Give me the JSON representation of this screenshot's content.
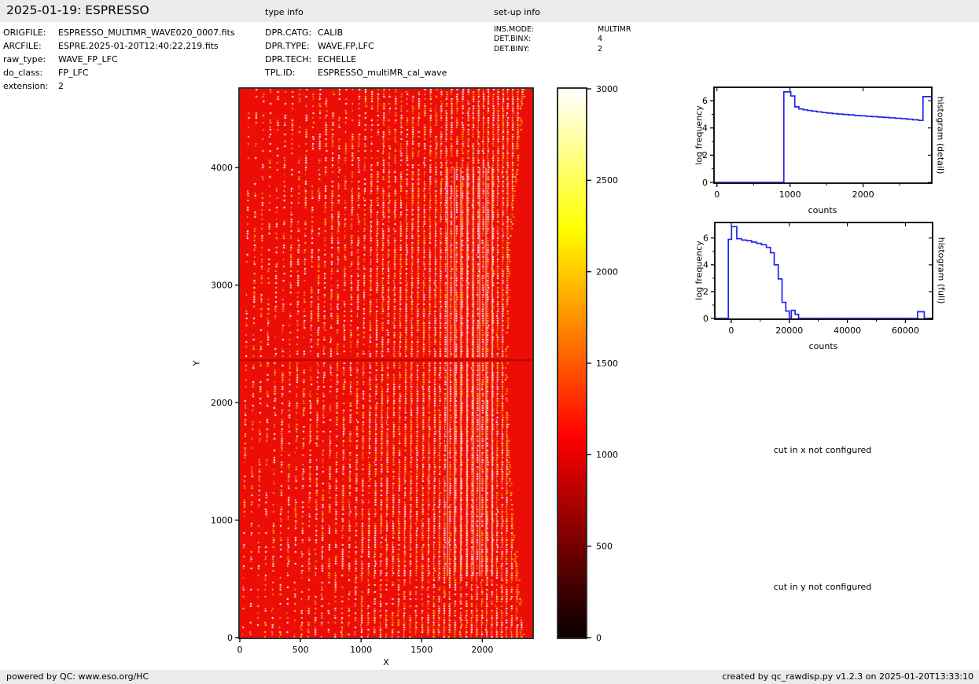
{
  "header": {
    "title": "2025-01-19: ESPRESSO",
    "type_info_label": "type info",
    "setup_info_label": "set-up info"
  },
  "metadata": {
    "file_info": [
      {
        "label": "ORIGFILE:",
        "value": "ESPRESSO_MULTIMR_WAVE020_0007.fits"
      },
      {
        "label": "ARCFILE:",
        "value": "ESPRE.2025-01-20T12:40:22.219.fits"
      },
      {
        "label": "raw_type:",
        "value": "WAVE_FP_LFC"
      },
      {
        "label": "do_class:",
        "value": "FP_LFC"
      },
      {
        "label": "extension:",
        "value": "2"
      }
    ],
    "type_info": [
      {
        "label": "DPR.CATG:",
        "value": "CALIB"
      },
      {
        "label": "DPR.TYPE:",
        "value": "WAVE,FP,LFC"
      },
      {
        "label": "DPR.TECH:",
        "value": "ECHELLE"
      },
      {
        "label": "TPL.ID:",
        "value": "ESPRESSO_multiMR_cal_wave"
      }
    ],
    "setup_info": [
      {
        "label": "INS.MODE:",
        "value": "MULTIMR"
      },
      {
        "label": "DET.BINX:",
        "value": "4"
      },
      {
        "label": "DET.BINY:",
        "value": "2"
      }
    ]
  },
  "messages": {
    "cut_x": "cut in x not configured",
    "cut_y": "cut in y not configured"
  },
  "footer": {
    "left": "powered by QC: www.eso.org/HC",
    "right": "created by qc_rawdisp.py v1.2.3 on 2025-01-20T13:33:10"
  },
  "chart_data": [
    {
      "type": "heatmap",
      "name": "raw-frame-image",
      "description": "ESPRESSO raw WAVE,FP,LFC echelle frame: red background with slanted dotted bright emission-line order stripes, denser and nearly solid white toward the centre-right, plain red band at the right edge, dark horizontal defect line near y=2370",
      "xlabel": "X",
      "ylabel": "Y",
      "xlim": [
        0,
        2413
      ],
      "ylim": [
        0,
        4670
      ],
      "x_ticks": [
        0,
        500,
        1000,
        1500,
        2000
      ],
      "y_ticks": [
        0,
        1000,
        2000,
        3000,
        4000
      ],
      "colormap": "hot",
      "vmin": 0,
      "vmax": 3000,
      "background_color": "#ed0d07",
      "dot_colors": [
        "#ffffff",
        "#ffe100",
        "#ff9000"
      ],
      "bright_columns": [
        263,
        272,
        280,
        288,
        296,
        304,
        312,
        320
      ],
      "defect_line_y": 2370,
      "defect_line_color": "#b50600"
    },
    {
      "type": "colorbar",
      "name": "colorbar",
      "vmin": 0,
      "vmax": 3000,
      "ticks": [
        0,
        500,
        1000,
        1500,
        2000,
        2500,
        3000
      ],
      "gradient_stops": [
        [
          0.0,
          "#0b0000"
        ],
        [
          0.1,
          "#460000"
        ],
        [
          0.2,
          "#8c0000"
        ],
        [
          0.3,
          "#d10000"
        ],
        [
          0.365,
          "#ff0000"
        ],
        [
          0.45,
          "#ff3900"
        ],
        [
          0.55,
          "#ff7c00"
        ],
        [
          0.65,
          "#ffbf00"
        ],
        [
          0.746,
          "#ffff00"
        ],
        [
          0.85,
          "#ffff68"
        ],
        [
          0.95,
          "#ffffcd"
        ],
        [
          1.0,
          "#ffffff"
        ]
      ]
    },
    {
      "type": "line",
      "name": "histogram-detail",
      "side_label": "histogram (detail)",
      "xlabel": "counts",
      "ylabel": "log frequency",
      "xlim": [
        -30,
        2930
      ],
      "ylim": [
        0,
        6.93
      ],
      "x_ticks": [
        0,
        1000,
        2000
      ],
      "x_minor_ticks": [
        500,
        1500,
        2500
      ],
      "y_ticks": [
        0,
        2,
        4,
        6
      ],
      "y_minor_ticks": [
        1,
        3,
        5
      ],
      "line_color": "#2222ee",
      "steps": [
        [
          -30,
          0
        ],
        [
          915,
          6.65
        ],
        [
          1010,
          6.35
        ],
        [
          1065,
          5.55
        ],
        [
          1120,
          5.4
        ],
        [
          1180,
          5.33
        ],
        [
          1240,
          5.28
        ],
        [
          1300,
          5.23
        ],
        [
          1370,
          5.18
        ],
        [
          1440,
          5.13
        ],
        [
          1510,
          5.09
        ],
        [
          1580,
          5.05
        ],
        [
          1650,
          5.02
        ],
        [
          1720,
          4.99
        ],
        [
          1800,
          4.96
        ],
        [
          1880,
          4.92
        ],
        [
          1960,
          4.89
        ],
        [
          2040,
          4.86
        ],
        [
          2120,
          4.83
        ],
        [
          2200,
          4.8
        ],
        [
          2280,
          4.77
        ],
        [
          2360,
          4.74
        ],
        [
          2440,
          4.71
        ],
        [
          2520,
          4.68
        ],
        [
          2600,
          4.64
        ],
        [
          2680,
          4.6
        ],
        [
          2760,
          4.55
        ],
        [
          2820,
          6.3
        ],
        [
          2930,
          6.3
        ]
      ]
    },
    {
      "type": "line",
      "name": "histogram-full",
      "side_label": "histogram (full)",
      "xlabel": "counts",
      "ylabel": "log frequency",
      "xlim": [
        -5400,
        69100
      ],
      "ylim": [
        0,
        7.1
      ],
      "x_ticks": [
        0,
        20000,
        40000,
        60000
      ],
      "x_minor_ticks": [
        10000,
        30000,
        50000
      ],
      "y_ticks": [
        0,
        2,
        4,
        6
      ],
      "y_minor_ticks": [
        1,
        3,
        5
      ],
      "line_color": "#2222ee",
      "steps": [
        [
          -5400,
          0
        ],
        [
          -1000,
          5.9
        ],
        [
          100,
          6.85
        ],
        [
          1900,
          5.95
        ],
        [
          3600,
          5.85
        ],
        [
          5300,
          5.8
        ],
        [
          7000,
          5.7
        ],
        [
          8700,
          5.6
        ],
        [
          10400,
          5.5
        ],
        [
          12100,
          5.3
        ],
        [
          13500,
          4.9
        ],
        [
          14800,
          4.0
        ],
        [
          16200,
          2.95
        ],
        [
          17500,
          1.2
        ],
        [
          18800,
          0.55
        ],
        [
          20000,
          0
        ],
        [
          20700,
          0.6
        ],
        [
          22000,
          0.3
        ],
        [
          23200,
          0
        ],
        [
          63800,
          0
        ],
        [
          64200,
          0.5
        ],
        [
          66500,
          0
        ],
        [
          69100,
          0
        ]
      ]
    }
  ]
}
